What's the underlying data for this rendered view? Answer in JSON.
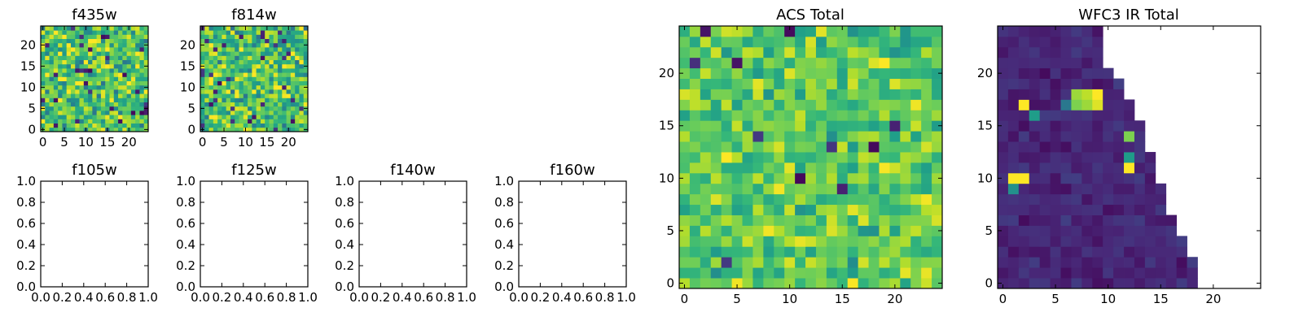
{
  "figure": {
    "background": "#ffffff"
  },
  "colormap": {
    "name": "viridis",
    "stops": [
      "#440154",
      "#482878",
      "#3e4a89",
      "#31688e",
      "#26828e",
      "#1f9e89",
      "#35b779",
      "#6ece58",
      "#b5de2b",
      "#fde725"
    ]
  },
  "chart_data": [
    {
      "id": "f435w",
      "type": "heatmap",
      "title": "f435w",
      "grid_size": [
        25,
        25
      ],
      "xlim": [
        -0.5,
        24.5
      ],
      "ylim": [
        -0.5,
        24.5
      ],
      "xticks": [
        0,
        5,
        10,
        15,
        20
      ],
      "xticklabels": [
        "0",
        "5",
        "10",
        "15",
        "20"
      ],
      "yticks": [
        0,
        5,
        10,
        15,
        20
      ],
      "yticklabels": [
        "0",
        "5",
        "10",
        "15",
        "20"
      ],
      "coverage": "full",
      "mean_level": 0.72,
      "spread": 0.22,
      "dark_fraction": 0.04,
      "seed": 11
    },
    {
      "id": "f814w",
      "type": "heatmap",
      "title": "f814w",
      "grid_size": [
        25,
        25
      ],
      "xlim": [
        -0.5,
        24.5
      ],
      "ylim": [
        -0.5,
        24.5
      ],
      "xticks": [
        0,
        5,
        10,
        15,
        20
      ],
      "xticklabels": [
        "0",
        "5",
        "10",
        "15",
        "20"
      ],
      "yticks": [
        0,
        5,
        10,
        15,
        20
      ],
      "yticklabels": [
        "0",
        "5",
        "10",
        "15",
        "20"
      ],
      "coverage": "full",
      "mean_level": 0.72,
      "spread": 0.22,
      "dark_fraction": 0.04,
      "seed": 23
    },
    {
      "id": "f105w",
      "type": "heatmap",
      "title": "f105w",
      "empty": true,
      "xlim": [
        0,
        1
      ],
      "ylim": [
        0,
        1
      ],
      "xticks": [
        0,
        0.2,
        0.4,
        0.6,
        0.8,
        1.0
      ],
      "xticklabels": [
        "0.0",
        "0.2",
        "0.4",
        "0.6",
        "0.8",
        "1.0"
      ],
      "yticks": [
        0,
        0.2,
        0.4,
        0.6,
        0.8,
        1.0
      ],
      "yticklabels": [
        "0.0",
        "0.2",
        "0.4",
        "0.6",
        "0.8",
        "1.0"
      ]
    },
    {
      "id": "f125w",
      "type": "heatmap",
      "title": "f125w",
      "empty": true,
      "xlim": [
        0,
        1
      ],
      "ylim": [
        0,
        1
      ],
      "xticks": [
        0,
        0.2,
        0.4,
        0.6,
        0.8,
        1.0
      ],
      "xticklabels": [
        "0.0",
        "0.2",
        "0.4",
        "0.6",
        "0.8",
        "1.0"
      ],
      "yticks": [
        0,
        0.2,
        0.4,
        0.6,
        0.8,
        1.0
      ],
      "yticklabels": [
        "0.0",
        "0.2",
        "0.4",
        "0.6",
        "0.8",
        "1.0"
      ]
    },
    {
      "id": "f140w",
      "type": "heatmap",
      "title": "f140w",
      "empty": true,
      "xlim": [
        0,
        1
      ],
      "ylim": [
        0,
        1
      ],
      "xticks": [
        0,
        0.2,
        0.4,
        0.6,
        0.8,
        1.0
      ],
      "xticklabels": [
        "0.0",
        "0.2",
        "0.4",
        "0.6",
        "0.8",
        "1.0"
      ],
      "yticks": [
        0,
        0.2,
        0.4,
        0.6,
        0.8,
        1.0
      ],
      "yticklabels": [
        "0.0",
        "0.2",
        "0.4",
        "0.6",
        "0.8",
        "1.0"
      ]
    },
    {
      "id": "f160w",
      "type": "heatmap",
      "title": "f160w",
      "empty": true,
      "xlim": [
        0,
        1
      ],
      "ylim": [
        0,
        1
      ],
      "xticks": [
        0,
        0.2,
        0.4,
        0.6,
        0.8,
        1.0
      ],
      "xticklabels": [
        "0.0",
        "0.2",
        "0.4",
        "0.6",
        "0.8",
        "1.0"
      ],
      "yticks": [
        0,
        0.2,
        0.4,
        0.6,
        0.8,
        1.0
      ],
      "yticklabels": [
        "0.0",
        "0.2",
        "0.4",
        "0.6",
        "0.8",
        "1.0"
      ]
    },
    {
      "id": "acs-total",
      "type": "heatmap",
      "title": "ACS Total",
      "grid_size": [
        25,
        25
      ],
      "xlim": [
        -0.5,
        24.5
      ],
      "ylim": [
        -0.5,
        24.5
      ],
      "xticks": [
        0,
        5,
        10,
        15,
        20
      ],
      "xticklabels": [
        "0",
        "5",
        "10",
        "15",
        "20"
      ],
      "yticks": [
        0,
        5,
        10,
        15,
        20
      ],
      "yticklabels": [
        "0",
        "5",
        "10",
        "15",
        "20"
      ],
      "coverage": "full",
      "mean_level": 0.75,
      "spread": 0.16,
      "dark_fraction": 0.015,
      "seed": 37
    },
    {
      "id": "wfc3-ir-total",
      "type": "heatmap",
      "title": "WFC3 IR Total",
      "grid_size": [
        25,
        25
      ],
      "xlim": [
        -0.5,
        24.5
      ],
      "ylim": [
        -0.5,
        24.5
      ],
      "xticks": [
        0,
        5,
        10,
        15,
        20
      ],
      "xticklabels": [
        "0",
        "5",
        "10",
        "15",
        "20"
      ],
      "yticks": [
        0,
        5,
        10,
        15,
        20
      ],
      "yticklabels": [
        "0",
        "5",
        "10",
        "15",
        "20"
      ],
      "coverage": "triangular",
      "row_max_col": [
        18,
        18,
        18,
        17,
        17,
        16,
        16,
        15,
        15,
        15,
        14,
        14,
        14,
        13,
        13,
        13,
        12,
        12,
        11,
        11,
        10,
        9,
        9,
        9,
        9
      ],
      "mean_level": 0.11,
      "spread": 0.05,
      "dark_fraction": 0,
      "seed": 53,
      "hot_cells": [
        [
          1,
          10,
          1.0
        ],
        [
          2,
          10,
          1.0
        ],
        [
          1,
          9,
          0.5
        ],
        [
          2,
          17,
          1.0
        ],
        [
          3,
          16,
          0.55
        ],
        [
          6,
          17,
          0.4
        ],
        [
          7,
          18,
          0.85
        ],
        [
          8,
          18,
          0.9
        ],
        [
          9,
          18,
          1.0
        ],
        [
          7,
          17,
          0.8
        ],
        [
          8,
          17,
          0.85
        ],
        [
          9,
          17,
          0.95
        ],
        [
          12,
          14,
          0.8
        ],
        [
          12,
          12,
          0.55
        ],
        [
          12,
          11,
          1.0
        ]
      ]
    }
  ]
}
